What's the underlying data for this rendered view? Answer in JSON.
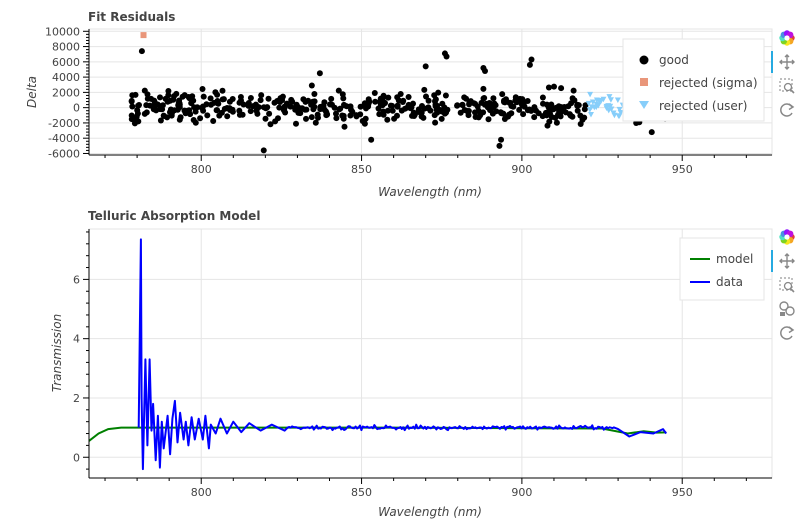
{
  "toolbar": {
    "buttons": [
      {
        "name": "bokeh-logo-icon",
        "interactable": true
      },
      {
        "name": "pan-tool-icon",
        "interactable": true,
        "active": true
      },
      {
        "name": "box-zoom-tool-icon",
        "interactable": true
      },
      {
        "name": "reset-tool-icon",
        "interactable": true
      }
    ],
    "buttons_bottom": [
      {
        "name": "bokeh-logo-icon",
        "interactable": true
      },
      {
        "name": "pan-tool-icon",
        "interactable": true,
        "active": true
      },
      {
        "name": "box-zoom-tool-icon",
        "interactable": true
      },
      {
        "name": "hover-tool-icon",
        "interactable": true
      },
      {
        "name": "reset-tool-icon",
        "interactable": true
      }
    ],
    "active_color": "#26aae1"
  },
  "chart_data": [
    {
      "type": "scatter",
      "title": "Fit Residuals",
      "xlabel": "Wavelength (nm)",
      "ylabel": "Delta",
      "xlim": [
        765,
        978
      ],
      "ylim": [
        -6200,
        10300
      ],
      "xticks": [
        800,
        850,
        900,
        950
      ],
      "yticks": [
        -6000,
        -4000,
        -2000,
        0,
        2000,
        4000,
        6000,
        8000,
        10000
      ],
      "grid": true,
      "legend_location": "top-right",
      "series": [
        {
          "name": "good",
          "marker": "circle",
          "color": "#000000",
          "x_range": [
            778,
            945
          ],
          "y_spread": 1800,
          "count": 520,
          "outliers": [
            [
              781.5,
              7400
            ],
            [
              819.5,
              -5600
            ],
            [
              870,
              5400
            ],
            [
              876,
              7100
            ],
            [
              876.5,
              6700
            ],
            [
              888,
              5200
            ],
            [
              888.5,
              4800
            ],
            [
              893,
              -5000
            ],
            [
              893.5,
              -4200
            ],
            [
              903,
              6300
            ],
            [
              902.5,
              5600
            ],
            [
              837,
              4500
            ],
            [
              853,
              -4200
            ],
            [
              834.5,
              2900
            ],
            [
              940.5,
              -3200
            ]
          ]
        },
        {
          "name": "rejected (sigma)",
          "marker": "square",
          "color": "#e9967a",
          "points": [
            [
              782,
              9500
            ]
          ]
        },
        {
          "name": "rejected (user)",
          "marker": "triangle-down",
          "color": "#87cefa",
          "x_range": [
            920.5,
            934
          ],
          "count": 40
        }
      ]
    },
    {
      "type": "line",
      "title": "Telluric Absorption Model",
      "xlabel": "Wavelength (nm)",
      "ylabel": "Transmission",
      "xlim": [
        765,
        978
      ],
      "ylim": [
        -0.7,
        7.7
      ],
      "xticks": [
        800,
        850,
        900,
        950
      ],
      "yticks": [
        0,
        2,
        4,
        6
      ],
      "grid": true,
      "legend_location": "top-right",
      "series": [
        {
          "name": "model",
          "color": "#008000",
          "points": [
            [
              765,
              0.55
            ],
            [
              768,
              0.8
            ],
            [
              771,
              0.95
            ],
            [
              775,
              1.0
            ],
            [
              780,
              1.0
            ],
            [
              860,
              1.0
            ],
            [
              900,
              0.98
            ],
            [
              925,
              0.97
            ],
            [
              933,
              0.8
            ],
            [
              938,
              0.88
            ],
            [
              942,
              0.83
            ],
            [
              945,
              0.84
            ]
          ]
        },
        {
          "name": "data",
          "color": "#0000ff",
          "x_range": [
            780.5,
            945
          ],
          "spikes": [
            [
              781.2,
              7.35
            ],
            [
              781.4,
              2.0
            ],
            [
              781.8,
              -0.4
            ],
            [
              782.6,
              3.3
            ],
            [
              783.2,
              0.4
            ],
            [
              783.9,
              3.3
            ],
            [
              784.5,
              0.9
            ],
            [
              785.0,
              1.8
            ],
            [
              785.8,
              -0.1
            ],
            [
              786.5,
              1.4
            ],
            [
              787.1,
              -0.35
            ],
            [
              787.7,
              1.2
            ],
            [
              788.3,
              0.3
            ],
            [
              789.5,
              1.4
            ],
            [
              790.3,
              0.1
            ],
            [
              791.0,
              1.3
            ],
            [
              791.8,
              1.9
            ],
            [
              792.6,
              0.5
            ],
            [
              793.4,
              1.5
            ],
            [
              794.5,
              0.6
            ],
            [
              795.2,
              1.2
            ],
            [
              796.0,
              0.4
            ],
            [
              797.0,
              1.35
            ],
            [
              798.0,
              0.6
            ],
            [
              799.2,
              1.3
            ],
            [
              800.5,
              0.6
            ],
            [
              801.3,
              1.4
            ],
            [
              802.4,
              0.3
            ],
            [
              803.0,
              1.1
            ],
            [
              804.5,
              0.8
            ],
            [
              806.0,
              1.3
            ],
            [
              808.0,
              0.8
            ],
            [
              810.0,
              1.2
            ],
            [
              812.5,
              0.85
            ],
            [
              815.0,
              1.15
            ],
            [
              818.5,
              0.9
            ],
            [
              822.0,
              1.1
            ],
            [
              826.0,
              0.9
            ]
          ],
          "noise": 0.05,
          "dip": [
            [
              930,
              0.95
            ],
            [
              933.5,
              0.7
            ],
            [
              937,
              0.85
            ],
            [
              941,
              0.8
            ],
            [
              944,
              0.95
            ],
            [
              945,
              0.8
            ]
          ]
        }
      ]
    }
  ]
}
